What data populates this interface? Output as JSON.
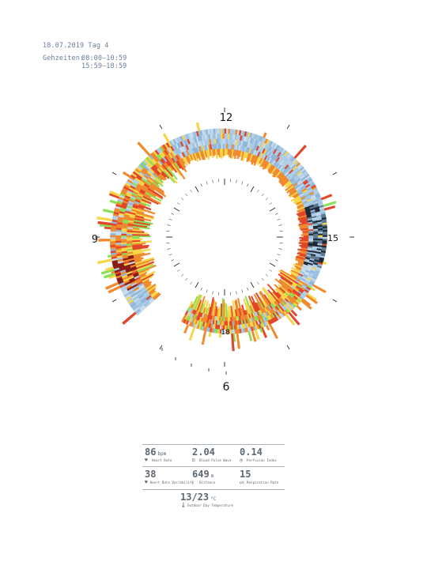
{
  "header": {
    "date_line": "18.07.2019 Tag 4",
    "times_label": "Gehzeiten:",
    "times_1": "08:00–10:59",
    "times_2": "15:59–18:59"
  },
  "chart_data": {
    "type": "radial-spiral-heatmap",
    "title": "",
    "clock_labels": {
      "12": "12",
      "15": "15",
      "9": "9",
      "18": "18",
      "6": "6"
    },
    "x_unit": "hour of day",
    "rings": [
      "outer band (rings 1–4)",
      "inner band (ring 5)"
    ],
    "time_range_hours": [
      6,
      19
    ],
    "walk_windows": [
      [
        8.0,
        10.98
      ],
      [
        15.98,
        18.98
      ]
    ],
    "colors": {
      "rest_light": "#c8dcec",
      "rest_mid": "#9cc1e1",
      "rest_dark": "#5d7a91",
      "night_dark": "#1e2a35",
      "green": "#8be05a",
      "yellow": "#f7d64a",
      "orange": "#f08a2e",
      "red": "#e2452a",
      "dark_red": "#8b1d17"
    }
  },
  "stats": {
    "heart_rate": {
      "value": "86",
      "unit": "bpm",
      "label": "Heart Rate",
      "icon": "heart-icon"
    },
    "blood_pulse_wave": {
      "value": "2.04",
      "unit": "",
      "label": "Blood Pulse Wave",
      "icon": "pulse-wave-icon"
    },
    "perfusion_index": {
      "value": "0.14",
      "unit": "",
      "label": "Perfusion Index",
      "icon": "perfusion-icon"
    },
    "heart_rate_variability": {
      "value": "38",
      "unit": "",
      "label": "Heart Rate Variability",
      "icon": "heart-variability-icon"
    },
    "distance": {
      "value": "649",
      "unit": "m",
      "label": "Distance",
      "icon": "footsteps-icon"
    },
    "respiration_rate": {
      "value": "15",
      "unit": "",
      "label": "Respiration Rate",
      "icon": "lungs-icon"
    },
    "temperature": {
      "value": "13/23",
      "unit": "°C",
      "label": "Outdoor Day Temperature",
      "icon": "thermometer-icon"
    }
  }
}
